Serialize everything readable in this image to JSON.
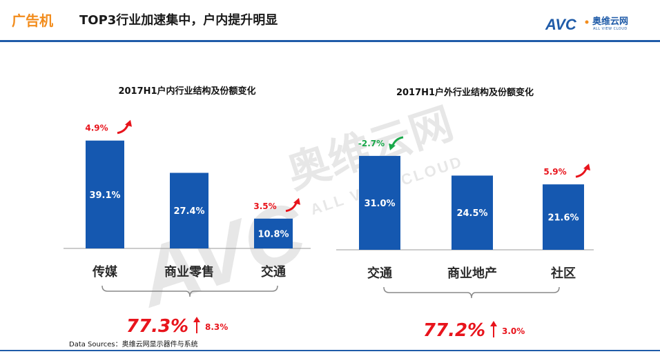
{
  "header": {
    "category": "广告机",
    "title": "TOP3行业加速集中，户内提升明显",
    "logo_text": "AVC",
    "logo_cn": "奥维云网",
    "logo_en": "ALL VIEW CLOUD"
  },
  "watermark": {
    "cn": "奥维云网",
    "en": "ALL VIEW CLOUD",
    "logo": "AVC"
  },
  "chart_data": [
    {
      "type": "bar",
      "title": "2017H1户内行业结构及份额变化",
      "categories": [
        "传媒",
        "商业零售",
        "交通"
      ],
      "values": [
        39.1,
        27.4,
        10.8
      ],
      "value_labels": [
        "39.1%",
        "27.4%",
        "10.8%"
      ],
      "changes": [
        "4.9%",
        "",
        "3.5%"
      ],
      "change_directions": [
        "up",
        "",
        "up"
      ],
      "ylim": [
        0,
        45
      ],
      "total": "77.3%",
      "total_change": "8.3%",
      "total_direction": "up",
      "legend": "none",
      "grid": false
    },
    {
      "type": "bar",
      "title": "2017H1户外行业结构及份额变化",
      "categories": [
        "交通",
        "商业地产",
        "社区"
      ],
      "values": [
        31.0,
        24.5,
        21.6
      ],
      "value_labels": [
        "31.0%",
        "24.5%",
        "21.6%"
      ],
      "changes": [
        "-2.7%",
        "",
        "5.9%"
      ],
      "change_directions": [
        "down",
        "",
        "up"
      ],
      "ylim": [
        0,
        45
      ],
      "total": "77.2%",
      "total_change": "3.0%",
      "total_direction": "up",
      "legend": "none",
      "grid": false
    }
  ],
  "colors": {
    "bar": "#1558b0",
    "up": "#e8141c",
    "down": "#1aa84a",
    "accent": "#f28c1c",
    "rule": "#1f5ba8"
  },
  "footer": {
    "source": "Data Sources：奥维云网显示器件与系统"
  }
}
